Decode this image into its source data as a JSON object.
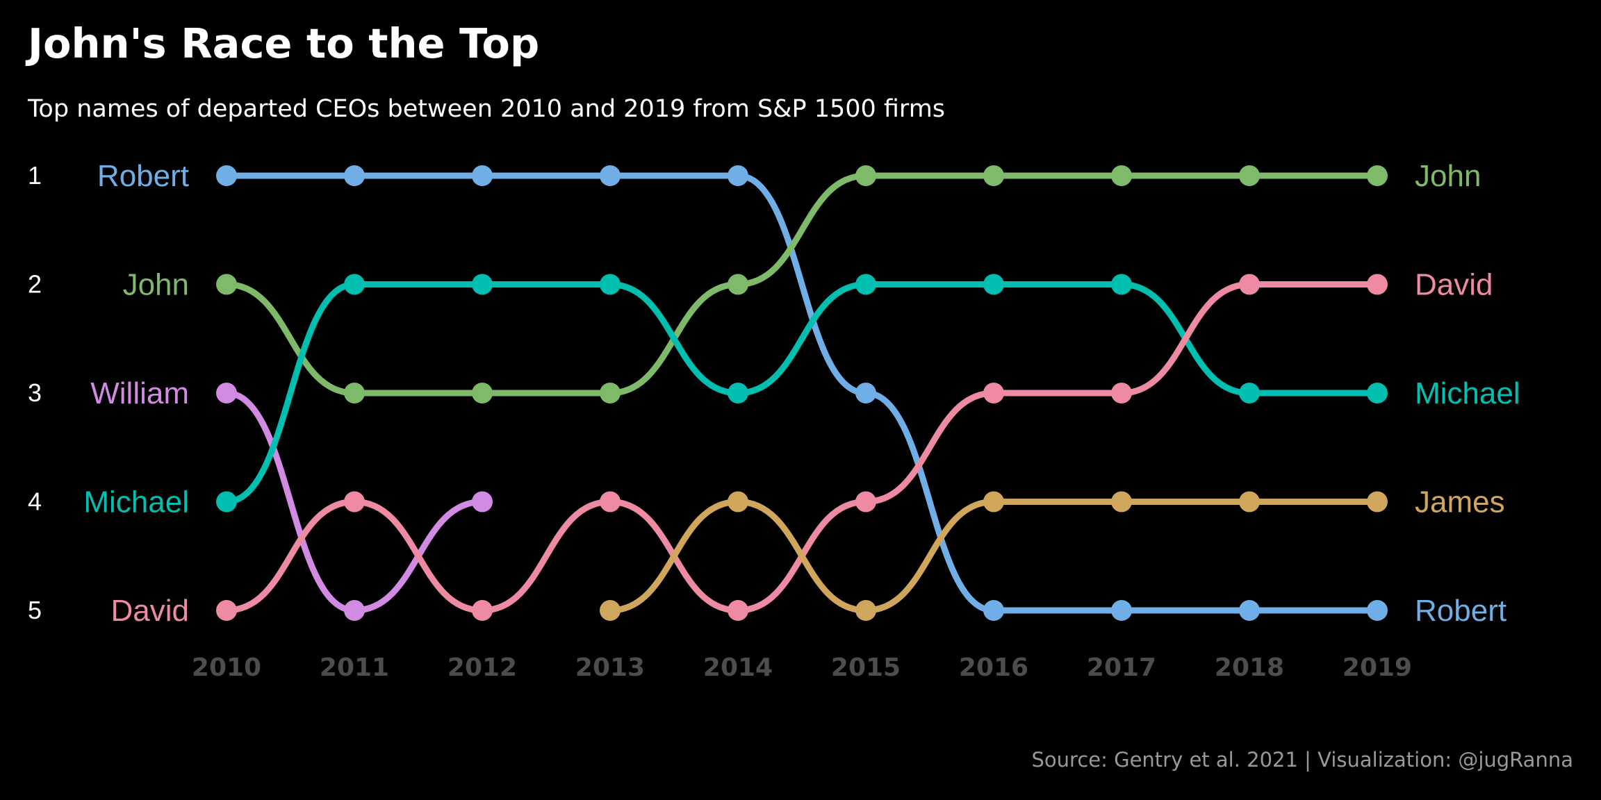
{
  "chart_data": {
    "type": "line",
    "title": "John's Race to the Top",
    "subtitle": "Top names of departed CEOs between 2010 and 2019 from S&P 1500 firms",
    "caption": "Source: Gentry et al. 2021 |  Visualization: @jugRanna",
    "x": [
      2010,
      2011,
      2012,
      2013,
      2014,
      2015,
      2016,
      2017,
      2018,
      2019
    ],
    "x_tick_labels": [
      "2010",
      "2011",
      "2012",
      "2013",
      "2014",
      "2015",
      "2016",
      "2017",
      "2018",
      "2019"
    ],
    "rank_labels": [
      "1",
      "2",
      "3",
      "4",
      "5"
    ],
    "y_reversed": true,
    "ylim": [
      1,
      5
    ],
    "series": [
      {
        "name": "Robert",
        "color": "#6FAEE6",
        "values": [
          1,
          1,
          1,
          1,
          1,
          3,
          5,
          5,
          5,
          5
        ]
      },
      {
        "name": "John",
        "color": "#7FB96A",
        "values": [
          2,
          3,
          3,
          3,
          2,
          1,
          1,
          1,
          1,
          1
        ]
      },
      {
        "name": "William",
        "color": "#D28BE2",
        "values": [
          3,
          5,
          4,
          null,
          null,
          null,
          null,
          null,
          null,
          null
        ]
      },
      {
        "name": "Michael",
        "color": "#00BFB0",
        "values": [
          4,
          2,
          2,
          2,
          3,
          2,
          2,
          2,
          3,
          3
        ]
      },
      {
        "name": "David",
        "color": "#EE8BA2",
        "values": [
          5,
          4,
          5,
          4,
          5,
          4,
          3,
          3,
          2,
          2
        ]
      },
      {
        "name": "James",
        "color": "#D0A65C",
        "values": [
          null,
          null,
          null,
          5,
          4,
          5,
          4,
          4,
          4,
          4
        ]
      }
    ],
    "start_labels": [
      {
        "name": "Robert",
        "rank": 1
      },
      {
        "name": "John",
        "rank": 2
      },
      {
        "name": "William",
        "rank": 3
      },
      {
        "name": "Michael",
        "rank": 4
      },
      {
        "name": "David",
        "rank": 5
      }
    ],
    "end_labels": [
      {
        "name": "John",
        "rank": 1
      },
      {
        "name": "David",
        "rank": 2
      },
      {
        "name": "Michael",
        "rank": 3
      },
      {
        "name": "James",
        "rank": 4
      },
      {
        "name": "Robert",
        "rank": 5
      }
    ],
    "grid": false,
    "legend": "none"
  }
}
